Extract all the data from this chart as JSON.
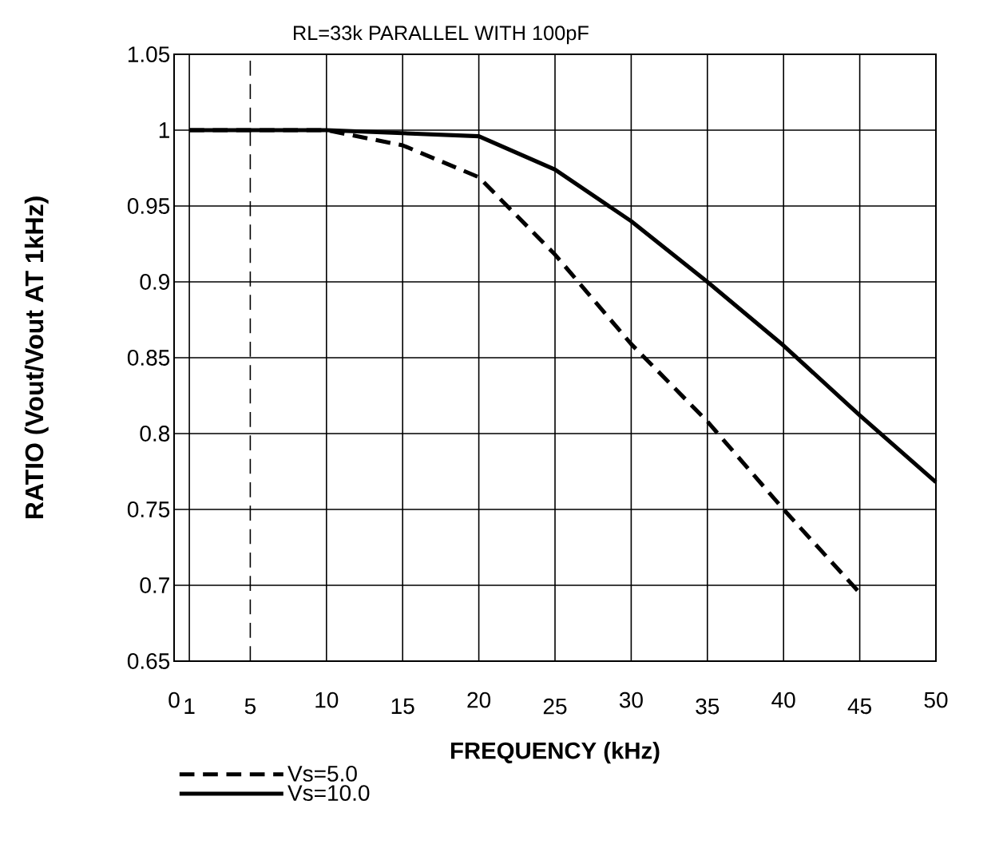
{
  "chart_data": {
    "type": "line",
    "title": "RL=33k PARALLEL WITH 100pF",
    "xlabel": "FREQUENCY (kHz)",
    "ylabel": "RATIO (Vout/Vout AT 1kHz)",
    "xlim": [
      0,
      50
    ],
    "ylim": [
      0.65,
      1.05
    ],
    "xticks": [
      0,
      1,
      5,
      10,
      15,
      20,
      25,
      30,
      35,
      40,
      45,
      50
    ],
    "yticks": [
      0.65,
      0.7,
      0.75,
      0.8,
      0.85,
      0.9,
      0.95,
      1,
      1.05
    ],
    "grid": true,
    "legend": "bottom",
    "ref_lines": [
      {
        "axis": "x",
        "value": 5,
        "line_style": "dashed"
      }
    ],
    "series": [
      {
        "name": "Vs=5.0",
        "color": "#000000",
        "line_style": "dashed",
        "x": [
          1,
          10,
          15,
          20,
          25,
          30,
          35,
          40,
          45
        ],
        "values": [
          1,
          1,
          0.99,
          0.969,
          0.918,
          0.859,
          0.808,
          0.75,
          0.695
        ]
      },
      {
        "name": "Vs=10.0",
        "color": "#000000",
        "line_style": "solid",
        "x": [
          1,
          10,
          20,
          25,
          30,
          35,
          40,
          45,
          50
        ],
        "values": [
          1,
          1,
          0.996,
          0.974,
          0.94,
          0.9,
          0.858,
          0.812,
          0.768
        ]
      }
    ]
  }
}
